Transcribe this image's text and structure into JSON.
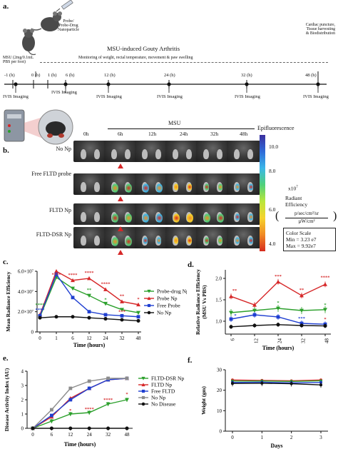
{
  "panel_a": {
    "label": "a.",
    "probe_text": [
      "Probe/",
      "Probe-Drug",
      "Nanoparticle"
    ],
    "msu_dose": [
      "MSU (2mg/0.1mL",
      "PBS per foot)"
    ],
    "title": "MSU-induced Gouty Arthritis",
    "subtitle": "Monitoring of weight, rectal temperature, movement & paw swelling",
    "end_text": [
      "Cardiac puncture,",
      "Tissue harvesting",
      "& Biodistribution"
    ],
    "timepoints": [
      "-1 (h)",
      "0 (h)",
      "1 (h)",
      "6 (h)",
      "12 (h)",
      "24 (h)",
      "32 (h)",
      "48 (h)"
    ],
    "imaging_label": "IVIS Imaging"
  },
  "panel_b": {
    "label": "b.",
    "msu": "MSU",
    "columns": [
      "0h",
      "6h",
      "12h",
      "24h",
      "32h",
      "48h"
    ],
    "rows": [
      "No Np",
      "Free FLTD probe",
      "FLTD Np",
      "FLTD-DSR Np"
    ],
    "colorbar_title": "Epifluorescence",
    "ticks": [
      "10.0",
      "8.0",
      "6.0",
      "4.0"
    ],
    "multiplier": "x10",
    "multiplier_exp": "7",
    "radiant": [
      "Radiant",
      "Efficiency"
    ],
    "units_top": "p/sec/cm²/sr",
    "units_bottom": "µW/cm²",
    "scale_title": "Color Scale",
    "scale_min": "Min = 3.23 e7",
    "scale_max": "Max = 9.92e7"
  },
  "colors": {
    "green": "#2ca02c",
    "red": "#d62728",
    "blue": "#1f3fd1",
    "black": "#111111",
    "gray": "#8c8c8c",
    "marker": "#d62728"
  },
  "chart_data": [
    {
      "panel": "c.",
      "type": "line",
      "xlabel": "Time (hours)",
      "ylabel": "Mean Radiance Efficiency",
      "x": [
        "0",
        "1",
        "6",
        "12",
        "24",
        "32",
        "48"
      ],
      "yticks": [
        "0",
        "2.0×10⁷",
        "4.0×10⁷",
        "6.0×10⁷"
      ],
      "ylim": [
        0,
        60000000
      ],
      "series": [
        {
          "name": "Probe-drug Np",
          "color": "#2ca02c",
          "marker": "triangle-down",
          "values": [
            15000000,
            54000000,
            43000000,
            36000000,
            28000000,
            22000000,
            19000000
          ]
        },
        {
          "name": "Probe Np",
          "color": "#d62728",
          "marker": "triangle-up",
          "values": [
            17000000,
            60000000,
            51000000,
            53000000,
            42000000,
            30000000,
            27000000
          ]
        },
        {
          "name": "Free Probe",
          "color": "#1f3fd1",
          "marker": "square",
          "values": [
            16000000,
            57000000,
            34000000,
            20000000,
            17000000,
            16000000,
            15000000
          ]
        },
        {
          "name": "No Np",
          "color": "#111111",
          "marker": "circle",
          "values": [
            14000000,
            15000000,
            15000000,
            14000000,
            13000000,
            12000000,
            11000000
          ]
        }
      ],
      "annotations": [
        "****",
        "****",
        "****",
        "****",
        "****",
        "****",
        "****",
        "**",
        "*",
        "**",
        "*",
        "***"
      ]
    },
    {
      "panel": "d.",
      "type": "line",
      "xlabel": "Time (hours)",
      "ylabel": [
        "Relative Radiance Efficiency",
        "(MSU Vs PBS)"
      ],
      "x": [
        "6",
        "12",
        "24",
        "32",
        "48"
      ],
      "yticks": [
        "1.0",
        "1.5",
        "2.0"
      ],
      "ylim": [
        0.7,
        2.2
      ],
      "series": [
        {
          "color": "#d62728",
          "marker": "triangle-up",
          "values": [
            1.58,
            1.38,
            1.92,
            1.6,
            1.86
          ]
        },
        {
          "color": "#2ca02c",
          "marker": "triangle-down",
          "values": [
            1.2,
            1.25,
            1.3,
            1.25,
            1.27
          ]
        },
        {
          "color": "#1f3fd1",
          "marker": "square",
          "values": [
            1.05,
            1.15,
            1.1,
            0.95,
            0.93
          ]
        },
        {
          "color": "#111111",
          "marker": "circle",
          "values": [
            0.87,
            0.9,
            0.92,
            0.9,
            0.89
          ]
        }
      ],
      "annotations": [
        "**",
        "***",
        "**",
        "****",
        "*",
        "*",
        "*",
        "*",
        "***"
      ]
    },
    {
      "panel": "e.",
      "type": "line",
      "xlabel": "Time (hours)",
      "ylabel": "Disease Activity Index (AU)",
      "x": [
        "0",
        "6",
        "12",
        "24",
        "32",
        "48"
      ],
      "yticks": [
        "0",
        "1",
        "2",
        "3",
        "4"
      ],
      "ylim": [
        0,
        4
      ],
      "series": [
        {
          "name": "FLTD-DSR Np",
          "color": "#2ca02c",
          "marker": "triangle-down",
          "values": [
            0,
            0.5,
            1.0,
            1.1,
            1.7,
            2.0
          ]
        },
        {
          "name": "FLTD Np",
          "color": "#d62728",
          "marker": "triangle-up",
          "values": [
            0,
            0.8,
            2.1,
            2.8,
            3.4,
            3.5
          ]
        },
        {
          "name": "Free FLTD",
          "color": "#1f3fd1",
          "marker": "square",
          "values": [
            0,
            0.9,
            2.0,
            2.8,
            3.4,
            3.5
          ]
        },
        {
          "name": "No Np",
          "color": "#8c8c8c",
          "marker": "square",
          "values": [
            0,
            1.3,
            2.8,
            3.3,
            3.5,
            3.5
          ]
        },
        {
          "name": "No Disease",
          "color": "#111111",
          "marker": "circle",
          "values": [
            0,
            0,
            0,
            0,
            0,
            0
          ]
        }
      ],
      "annotations": [
        "*",
        "****",
        "****",
        "*"
      ]
    },
    {
      "panel": "f.",
      "type": "line",
      "xlabel": "Days",
      "ylabel": "Weight (gm)",
      "x": [
        "0",
        "1",
        "2",
        "3"
      ],
      "yticks": [
        "0",
        "10",
        "20",
        "30"
      ],
      "ylim": [
        0,
        30
      ],
      "series": [
        {
          "color": "#d62728",
          "values": [
            25.0,
            24.8,
            24.6,
            25.0
          ]
        },
        {
          "color": "#2ca02c",
          "values": [
            24.5,
            24.5,
            24.3,
            24.6
          ]
        },
        {
          "color": "#1f3fd1",
          "values": [
            23.8,
            23.9,
            23.6,
            23.8
          ]
        },
        {
          "color": "#111111",
          "values": [
            23.3,
            23.4,
            23.2,
            22.6
          ]
        }
      ]
    }
  ]
}
